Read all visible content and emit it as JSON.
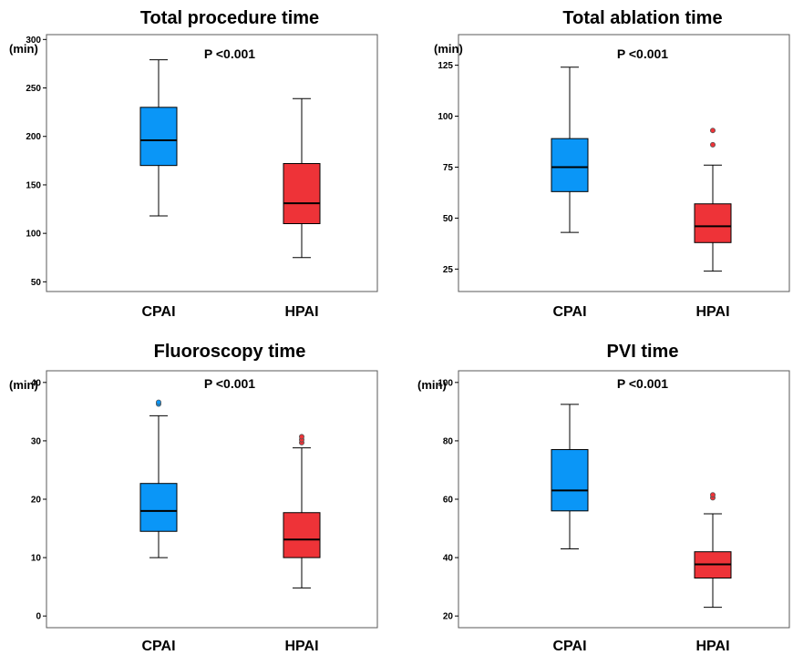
{
  "colors": {
    "CPAI": "#0a96f7",
    "HPAI": "#ee3338",
    "frame": "#5a5a5a"
  },
  "chart_data": [
    {
      "type": "boxplot",
      "title": "Total procedure time",
      "annotation": "P <0.001",
      "ylabel": "(min)",
      "yticks": [
        50,
        100,
        150,
        200,
        250,
        300
      ],
      "ylim": [
        40,
        305
      ],
      "categories": [
        "CPAI",
        "HPAI"
      ],
      "series": [
        {
          "name": "CPAI",
          "whisker_low": 118,
          "q1": 170,
          "median": 196,
          "q3": 230,
          "whisker_high": 279,
          "outliers": []
        },
        {
          "name": "HPAI",
          "whisker_low": 75,
          "q1": 110,
          "median": 131,
          "q3": 172,
          "whisker_high": 239,
          "outliers": []
        }
      ]
    },
    {
      "type": "boxplot",
      "title": "Total ablation time",
      "annotation": "P <0.001",
      "ylabel": "(min)",
      "yticks": [
        25,
        50,
        75,
        100,
        125
      ],
      "ylim": [
        14,
        140
      ],
      "categories": [
        "CPAI",
        "HPAI"
      ],
      "series": [
        {
          "name": "CPAI",
          "whisker_low": 43,
          "q1": 63,
          "median": 75,
          "q3": 89,
          "whisker_high": 124,
          "outliers": []
        },
        {
          "name": "HPAI",
          "whisker_low": 24,
          "q1": 38,
          "median": 46,
          "q3": 57,
          "whisker_high": 76,
          "outliers": [
            86,
            93
          ]
        }
      ]
    },
    {
      "type": "boxplot",
      "title": "Fluoroscopy time",
      "annotation": "P <0.001",
      "ylabel": "(min)",
      "yticks": [
        0,
        10,
        20,
        30,
        40
      ],
      "ylim": [
        -2,
        42
      ],
      "categories": [
        "CPAI",
        "HPAI"
      ],
      "series": [
        {
          "name": "CPAI",
          "whisker_low": 10,
          "q1": 14.5,
          "median": 18,
          "q3": 22.7,
          "whisker_high": 34.3,
          "outliers": [
            36.3,
            36.6
          ]
        },
        {
          "name": "HPAI",
          "whisker_low": 4.8,
          "q1": 10,
          "median": 13.1,
          "q3": 17.7,
          "whisker_high": 28.8,
          "outliers": [
            29.7,
            30.2,
            30.7
          ]
        }
      ]
    },
    {
      "type": "boxplot",
      "title": "PVI time",
      "annotation": "P <0.001",
      "ylabel": "(min)",
      "yticks": [
        20,
        40,
        60,
        80,
        100
      ],
      "ylim": [
        16,
        104
      ],
      "categories": [
        "CPAI",
        "HPAI"
      ],
      "series": [
        {
          "name": "CPAI",
          "whisker_low": 43,
          "q1": 56,
          "median": 63,
          "q3": 77,
          "whisker_high": 92.5,
          "outliers": []
        },
        {
          "name": "HPAI",
          "whisker_low": 23,
          "q1": 33,
          "median": 37.7,
          "q3": 42,
          "whisker_high": 55,
          "outliers": [
            60.5,
            61.5
          ]
        }
      ]
    }
  ]
}
